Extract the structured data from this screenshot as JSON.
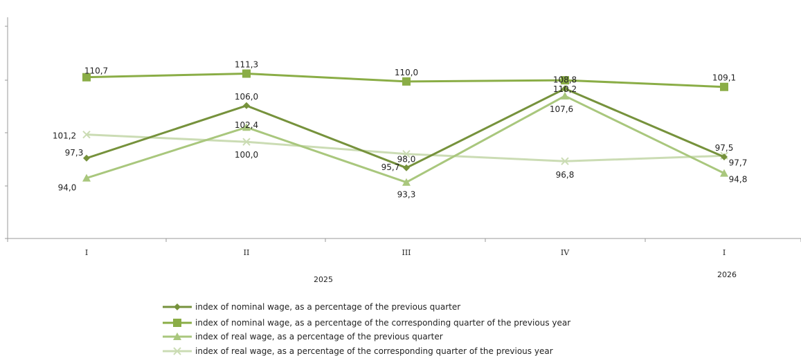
{
  "chart_data": {
    "type": "line",
    "title": "",
    "xlabel": "",
    "ylabel": "",
    "categories": [
      "I",
      "II",
      "III",
      "IV",
      "I"
    ],
    "year_labels": [
      "2025",
      "2026"
    ],
    "ylim": [
      90,
      115
    ],
    "grid": false,
    "legend_position": "bottom",
    "series": [
      {
        "name": "index of nominal wage, as a percentage of the previous quarter",
        "values": [
          97.3,
          106.0,
          95.7,
          108.8,
          97.5
        ],
        "value_labels": [
          "97,3",
          "106,0",
          "95,7",
          "108,8",
          "97,5"
        ],
        "color": "#76923c",
        "marker": "diamond"
      },
      {
        "name": "index of nominal wage, as a percentage of the corresponding quarter of the previous year",
        "values": [
          110.7,
          111.3,
          110.0,
          110.2,
          109.1
        ],
        "value_labels": [
          "110,7",
          "111,3",
          "110,0",
          "110,2",
          "109,1"
        ],
        "color": "#8aad46",
        "marker": "square"
      },
      {
        "name": "index of real wage, as a percentage of the previous quarter",
        "values": [
          94.0,
          102.4,
          93.3,
          107.6,
          94.8
        ],
        "value_labels": [
          "94,0",
          "102,4",
          "93,3",
          "107,6",
          "94,8"
        ],
        "color": "#a9c77d",
        "marker": "triangle"
      },
      {
        "name": "index of real wage, as a percentage of the  corresponding quarter of the previous year",
        "values": [
          101.2,
          100.0,
          98.0,
          96.8,
          97.7
        ],
        "value_labels": [
          "101,2",
          "100,0",
          "98,0",
          "96,8",
          "97,7"
        ],
        "color": "#cbdcb4",
        "marker": "x"
      }
    ]
  }
}
